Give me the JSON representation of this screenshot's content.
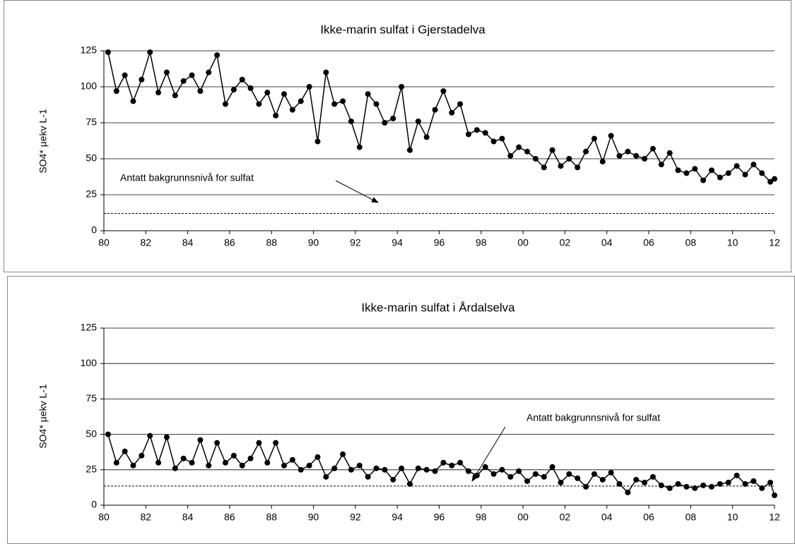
{
  "chart_data": [
    {
      "type": "line",
      "title": "Ikke-marin sulfat i Gjerstadelva",
      "ylabel": "SO4* µekv L-1",
      "annotation": "Antatt bakgrunnsnivå for sulfat",
      "reference_line": 12,
      "color": "#000000",
      "xlim": [
        1980,
        2012
      ],
      "ylim": [
        0,
        125
      ],
      "yticks": [
        0,
        25,
        50,
        75,
        100,
        125
      ],
      "grid": true,
      "xticks": [
        {
          "value": 1980,
          "label": "80"
        },
        {
          "value": 1982,
          "label": "82"
        },
        {
          "value": 1984,
          "label": "84"
        },
        {
          "value": 1986,
          "label": "86"
        },
        {
          "value": 1988,
          "label": "88"
        },
        {
          "value": 1990,
          "label": "90"
        },
        {
          "value": 1992,
          "label": "92"
        },
        {
          "value": 1994,
          "label": "94"
        },
        {
          "value": 1996,
          "label": "96"
        },
        {
          "value": 1998,
          "label": "98"
        },
        {
          "value": 2000,
          "label": "00"
        },
        {
          "value": 2002,
          "label": "02"
        },
        {
          "value": 2004,
          "label": "04"
        },
        {
          "value": 2006,
          "label": "06"
        },
        {
          "value": 2008,
          "label": "08"
        },
        {
          "value": 2010,
          "label": "10"
        },
        {
          "value": 2012,
          "label": "12"
        }
      ],
      "x": [
        1980.2,
        1980.6,
        1981.0,
        1981.4,
        1981.8,
        1982.2,
        1982.6,
        1983.0,
        1983.4,
        1983.8,
        1984.2,
        1984.6,
        1985.0,
        1985.4,
        1985.8,
        1986.2,
        1986.6,
        1987.0,
        1987.4,
        1987.8,
        1988.2,
        1988.6,
        1989.0,
        1989.4,
        1989.8,
        1990.2,
        1990.6,
        1991.0,
        1991.4,
        1991.8,
        1992.2,
        1992.6,
        1993.0,
        1993.4,
        1993.8,
        1994.2,
        1994.6,
        1995.0,
        1995.4,
        1995.8,
        1996.2,
        1996.6,
        1997.0,
        1997.4,
        1997.8,
        1998.2,
        1998.6,
        1999.0,
        1999.4,
        1999.8,
        2000.2,
        2000.6,
        2001.0,
        2001.4,
        2001.8,
        2002.2,
        2002.6,
        2003.0,
        2003.4,
        2003.8,
        2004.2,
        2004.6,
        2005.0,
        2005.4,
        2005.8,
        2006.2,
        2006.6,
        2007.0,
        2007.4,
        2007.8,
        2008.2,
        2008.6,
        2009.0,
        2009.4,
        2009.8,
        2010.2,
        2010.6,
        2011.0,
        2011.4,
        2011.8,
        2012.0
      ],
      "values": [
        124,
        97,
        108,
        90,
        105,
        124,
        96,
        110,
        94,
        104,
        108,
        97,
        110,
        122,
        88,
        98,
        105,
        99,
        88,
        96,
        80,
        95,
        84,
        90,
        100,
        62,
        110,
        88,
        90,
        76,
        58,
        95,
        88,
        75,
        78,
        100,
        56,
        76,
        65,
        84,
        97,
        82,
        88,
        67,
        70,
        68,
        62,
        64,
        52,
        58,
        55,
        50,
        44,
        56,
        45,
        50,
        44,
        55,
        64,
        48,
        66,
        52,
        55,
        52,
        50,
        57,
        46,
        54,
        42,
        40,
        43,
        35,
        42,
        37,
        40,
        45,
        39,
        46,
        40,
        34,
        36
      ]
    },
    {
      "type": "line",
      "title": "Ikke-marin sulfat i Årdalselva",
      "ylabel": "SO4* µekv L-1",
      "annotation": "Antatt bakgrunnsnivå for sulfat",
      "reference_line": 13.5,
      "color": "#000000",
      "xlim": [
        1980,
        2012
      ],
      "ylim": [
        0,
        125
      ],
      "yticks": [
        0,
        25,
        50,
        75,
        100,
        125
      ],
      "grid": true,
      "xticks": [
        {
          "value": 1980,
          "label": "80"
        },
        {
          "value": 1982,
          "label": "82"
        },
        {
          "value": 1984,
          "label": "84"
        },
        {
          "value": 1986,
          "label": "86"
        },
        {
          "value": 1988,
          "label": "88"
        },
        {
          "value": 1990,
          "label": "90"
        },
        {
          "value": 1992,
          "label": "92"
        },
        {
          "value": 1994,
          "label": "94"
        },
        {
          "value": 1996,
          "label": "96"
        },
        {
          "value": 1998,
          "label": "98"
        },
        {
          "value": 2000,
          "label": "00"
        },
        {
          "value": 2002,
          "label": "02"
        },
        {
          "value": 2004,
          "label": "04"
        },
        {
          "value": 2006,
          "label": "06"
        },
        {
          "value": 2008,
          "label": "08"
        },
        {
          "value": 2010,
          "label": "10"
        },
        {
          "value": 2012,
          "label": "12"
        }
      ],
      "x": [
        1980.2,
        1980.6,
        1981.0,
        1981.4,
        1981.8,
        1982.2,
        1982.6,
        1983.0,
        1983.4,
        1983.8,
        1984.2,
        1984.6,
        1985.0,
        1985.4,
        1985.8,
        1986.2,
        1986.6,
        1987.0,
        1987.4,
        1987.8,
        1988.2,
        1988.6,
        1989.0,
        1989.4,
        1989.8,
        1990.2,
        1990.6,
        1991.0,
        1991.4,
        1991.8,
        1992.2,
        1992.6,
        1993.0,
        1993.4,
        1993.8,
        1994.2,
        1994.6,
        1995.0,
        1995.4,
        1995.8,
        1996.2,
        1996.6,
        1997.0,
        1997.4,
        1997.8,
        1998.2,
        1998.6,
        1999.0,
        1999.4,
        1999.8,
        2000.2,
        2000.6,
        2001.0,
        2001.4,
        2001.8,
        2002.2,
        2002.6,
        2003.0,
        2003.4,
        2003.8,
        2004.2,
        2004.6,
        2005.0,
        2005.4,
        2005.8,
        2006.2,
        2006.6,
        2007.0,
        2007.4,
        2007.8,
        2008.2,
        2008.6,
        2009.0,
        2009.4,
        2009.8,
        2010.2,
        2010.6,
        2011.0,
        2011.4,
        2011.8,
        2012.0
      ],
      "values": [
        50,
        30,
        38,
        28,
        35,
        49,
        30,
        48,
        26,
        33,
        30,
        46,
        28,
        44,
        30,
        35,
        28,
        33,
        44,
        30,
        44,
        28,
        32,
        25,
        28,
        34,
        20,
        26,
        36,
        25,
        28,
        20,
        26,
        25,
        18,
        26,
        15,
        26,
        25,
        24,
        30,
        28,
        30,
        24,
        21,
        27,
        22,
        25,
        20,
        24,
        17,
        22,
        20,
        27,
        16,
        22,
        19,
        13,
        22,
        18,
        23,
        15,
        9,
        18,
        16,
        20,
        14,
        12,
        15,
        13,
        12,
        14,
        13,
        15,
        16,
        21,
        15,
        17,
        12,
        16,
        7
      ]
    }
  ]
}
